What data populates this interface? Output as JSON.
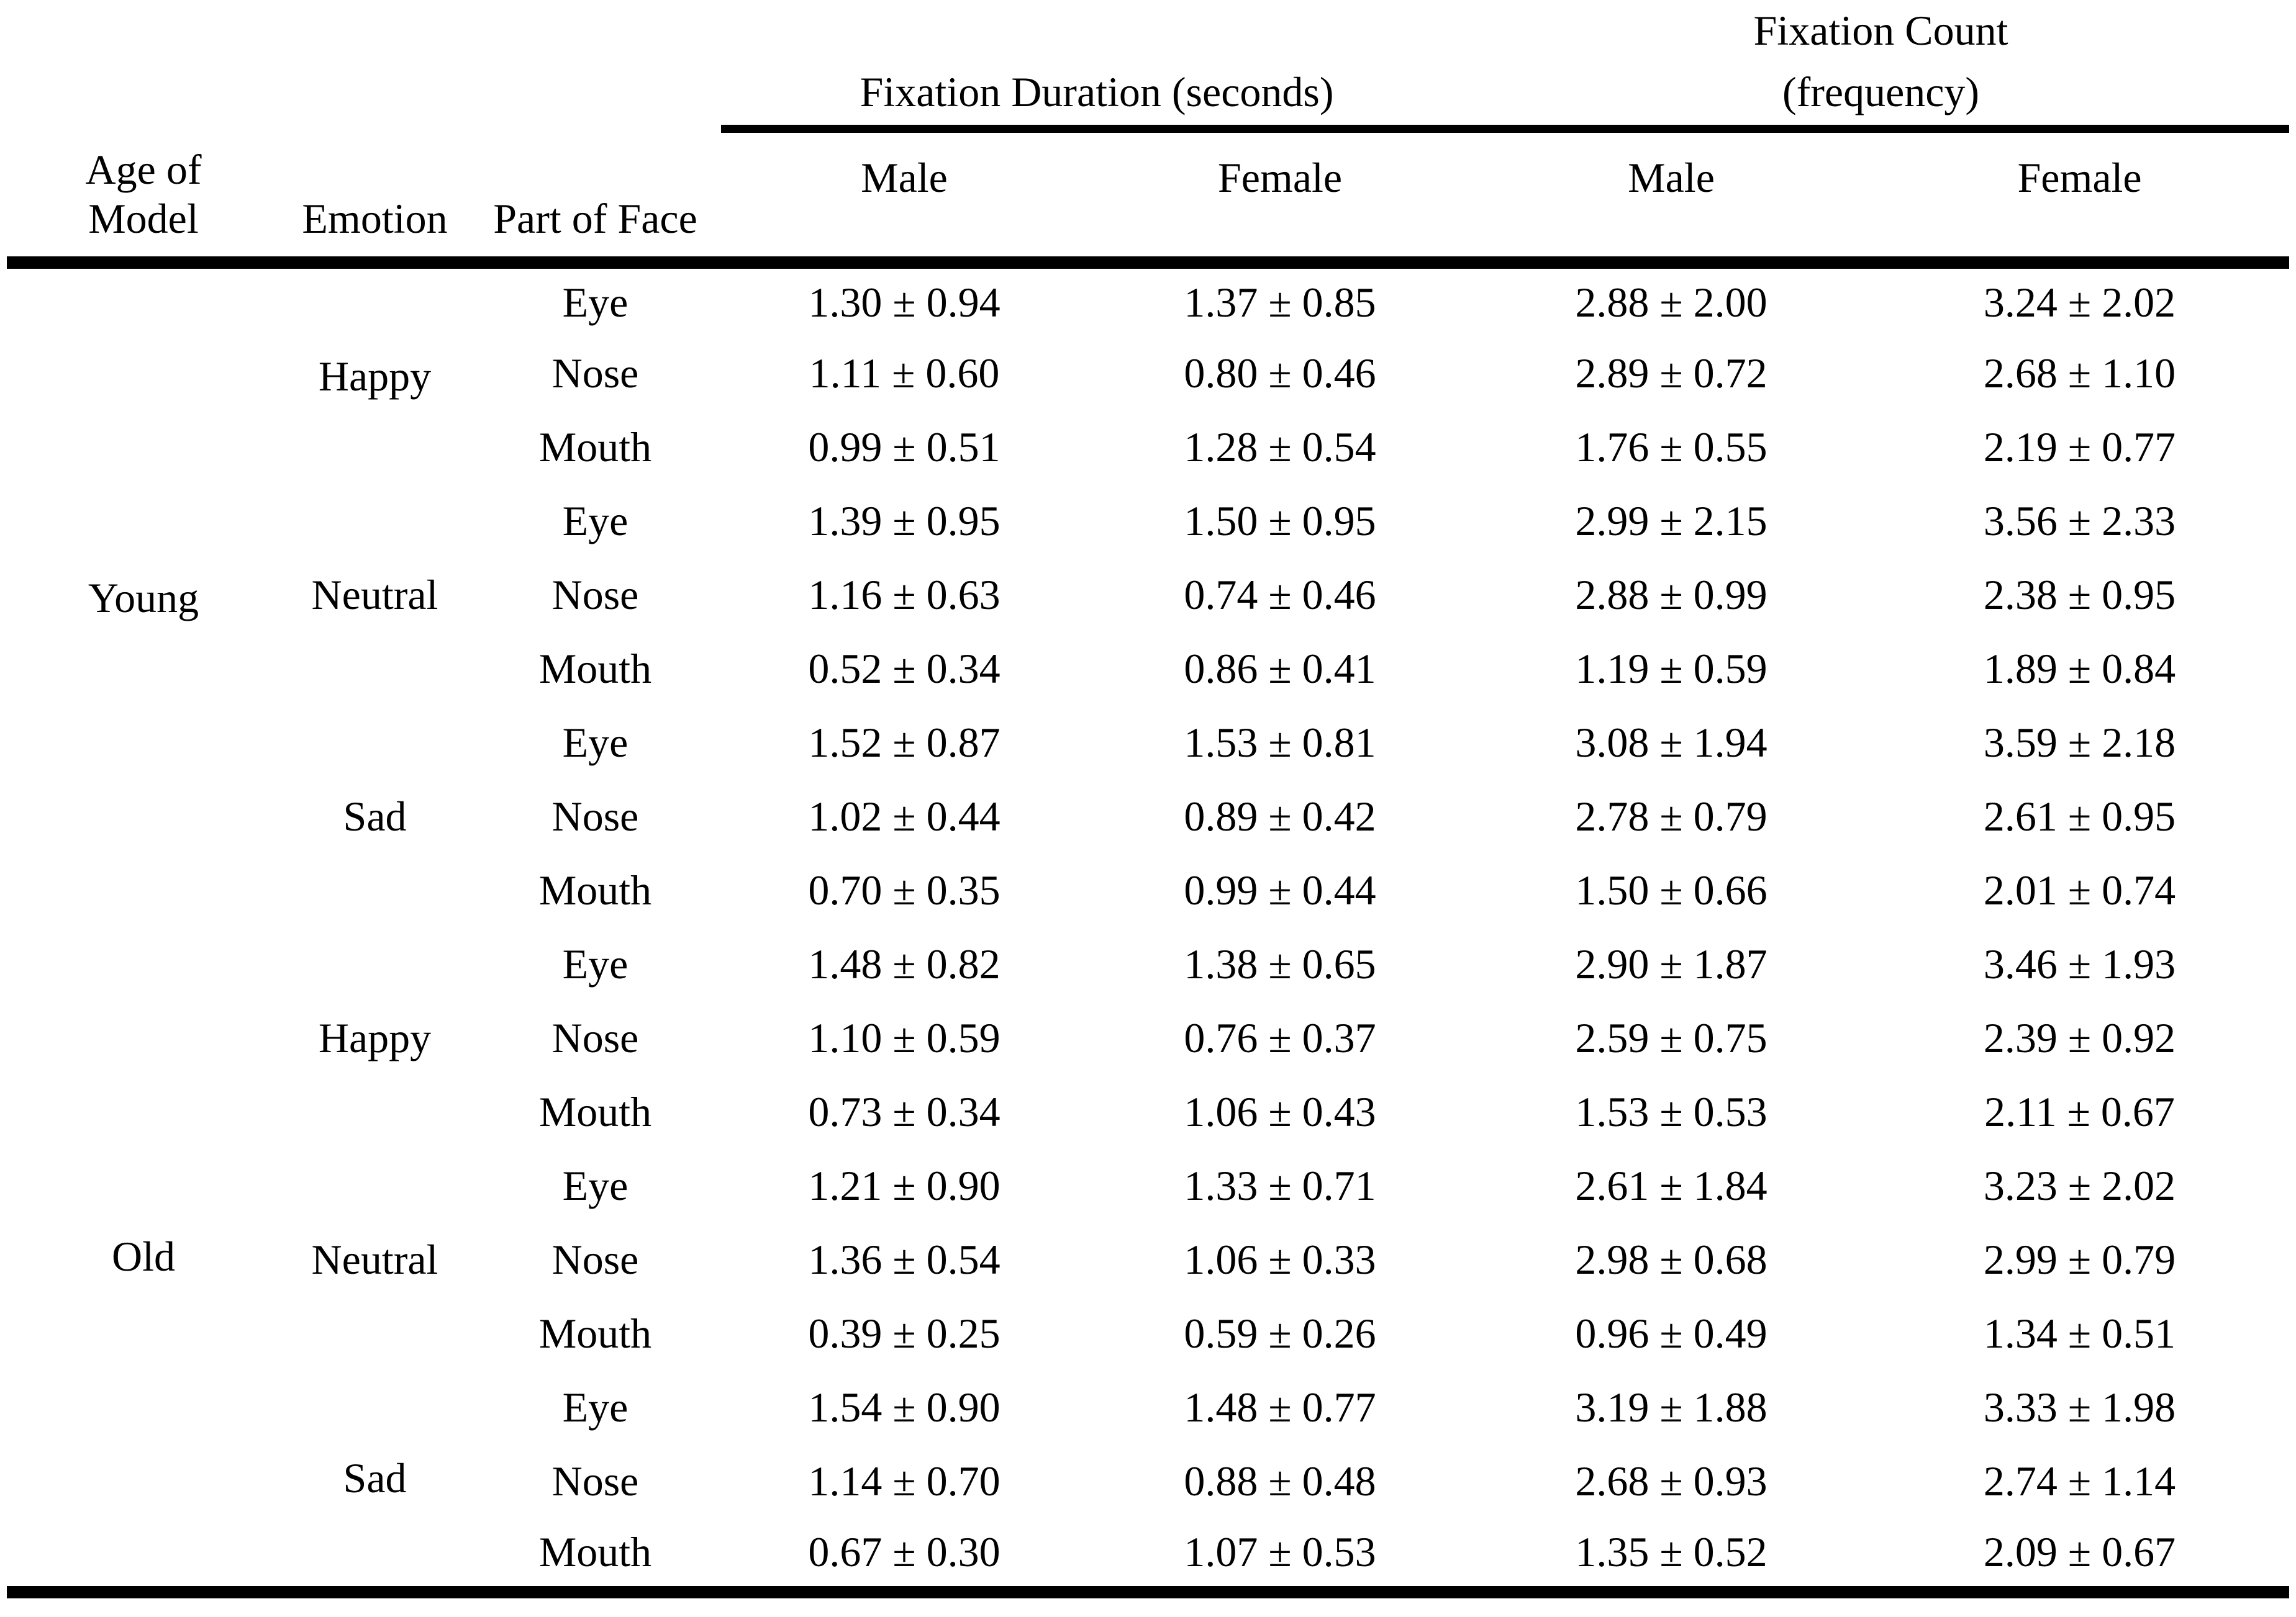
{
  "colors": {
    "background": "#ffffff",
    "text": "#000000",
    "rules": "#000000"
  },
  "table": {
    "row_headers": {
      "age_of_model": "Age of\nModel",
      "emotion": "Emotion",
      "part_of_face": "Part of Face"
    },
    "group_headers": {
      "fixation_duration": "Fixation Duration (seconds)",
      "fixation_count": "Fixation Count\n(frequency)"
    },
    "sub_headers": {
      "duration_male": "Male",
      "duration_female": "Female",
      "count_male": "Male",
      "count_female": "Female"
    },
    "groups": [
      {
        "age": "Young",
        "emotions": [
          {
            "emotion": "Happy",
            "parts": [
              {
                "part": "Eye",
                "values": [
                  "1.30 ± 0.94",
                  "1.37 ± 0.85",
                  "2.88 ± 2.00",
                  "3.24 ± 2.02"
                ]
              },
              {
                "part": "Nose",
                "values": [
                  "1.11 ± 0.60",
                  "0.80 ± 0.46",
                  "2.89 ± 0.72",
                  "2.68 ± 1.10"
                ]
              },
              {
                "part": "Mouth",
                "values": [
                  "0.99 ± 0.51",
                  "1.28 ± 0.54",
                  "1.76 ± 0.55",
                  "2.19 ± 0.77"
                ]
              }
            ]
          },
          {
            "emotion": "Neutral",
            "parts": [
              {
                "part": "Eye",
                "values": [
                  "1.39 ± 0.95",
                  "1.50 ± 0.95",
                  "2.99 ± 2.15",
                  "3.56 ± 2.33"
                ]
              },
              {
                "part": "Nose",
                "values": [
                  "1.16 ± 0.63",
                  "0.74 ± 0.46",
                  "2.88 ± 0.99",
                  "2.38 ± 0.95"
                ]
              },
              {
                "part": "Mouth",
                "values": [
                  "0.52 ± 0.34",
                  "0.86 ± 0.41",
                  "1.19 ± 0.59",
                  "1.89 ± 0.84"
                ]
              }
            ]
          },
          {
            "emotion": "Sad",
            "parts": [
              {
                "part": "Eye",
                "values": [
                  "1.52 ± 0.87",
                  "1.53 ± 0.81",
                  "3.08 ± 1.94",
                  "3.59 ± 2.18"
                ]
              },
              {
                "part": "Nose",
                "values": [
                  "1.02 ± 0.44",
                  "0.89 ± 0.42",
                  "2.78 ± 0.79",
                  "2.61 ± 0.95"
                ]
              },
              {
                "part": "Mouth",
                "values": [
                  "0.70 ± 0.35",
                  "0.99 ± 0.44",
                  "1.50 ± 0.66",
                  "2.01 ± 0.74"
                ]
              }
            ]
          }
        ]
      },
      {
        "age": "Old",
        "emotions": [
          {
            "emotion": "Happy",
            "parts": [
              {
                "part": "Eye",
                "values": [
                  "1.48 ± 0.82",
                  "1.38 ± 0.65",
                  "2.90 ± 1.87",
                  "3.46 ± 1.93"
                ]
              },
              {
                "part": "Nose",
                "values": [
                  "1.10 ± 0.59",
                  "0.76 ± 0.37",
                  "2.59 ± 0.75",
                  "2.39 ± 0.92"
                ]
              },
              {
                "part": "Mouth",
                "values": [
                  "0.73 ± 0.34",
                  "1.06 ± 0.43",
                  "1.53 ± 0.53",
                  "2.11 ± 0.67"
                ]
              }
            ]
          },
          {
            "emotion": "Neutral",
            "parts": [
              {
                "part": "Eye",
                "values": [
                  "1.21 ± 0.90",
                  "1.33 ± 0.71",
                  "2.61 ± 1.84",
                  "3.23 ± 2.02"
                ]
              },
              {
                "part": "Nose",
                "values": [
                  "1.36 ± 0.54",
                  "1.06 ± 0.33",
                  "2.98 ± 0.68",
                  "2.99 ± 0.79"
                ]
              },
              {
                "part": "Mouth",
                "values": [
                  "0.39 ± 0.25",
                  "0.59 ± 0.26",
                  "0.96 ± 0.49",
                  "1.34 ± 0.51"
                ]
              }
            ]
          },
          {
            "emotion": "Sad",
            "parts": [
              {
                "part": "Eye",
                "values": [
                  "1.54 ± 0.90",
                  "1.48 ± 0.77",
                  "3.19 ± 1.88",
                  "3.33 ± 1.98"
                ]
              },
              {
                "part": "Nose",
                "values": [
                  "1.14 ± 0.70",
                  "0.88 ± 0.48",
                  "2.68 ± 0.93",
                  "2.74 ± 1.14"
                ]
              },
              {
                "part": "Mouth",
                "values": [
                  "0.67 ± 0.30",
                  "1.07 ± 0.53",
                  "1.35 ± 0.52",
                  "2.09 ± 0.67"
                ]
              }
            ]
          }
        ]
      }
    ]
  }
}
